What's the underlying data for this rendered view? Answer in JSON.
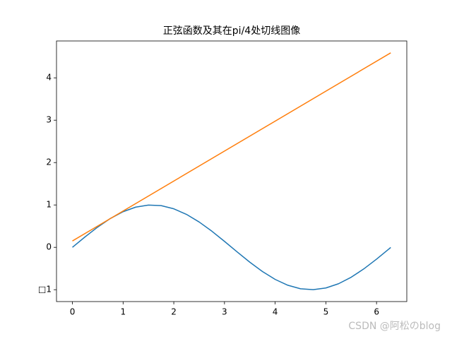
{
  "chart_data": {
    "type": "line",
    "title": "正弦函数及其在pi/4处切线图像",
    "series": [
      {
        "color": "#1f77b4",
        "x": [
          0,
          0.25,
          0.5,
          0.75,
          1,
          1.25,
          1.5,
          1.75,
          2,
          2.25,
          2.5,
          2.75,
          3,
          3.25,
          3.5,
          3.75,
          4,
          4.25,
          4.5,
          4.75,
          5,
          5.25,
          5.5,
          5.75,
          6,
          6.25,
          6.28
        ],
        "values": [
          0,
          0.247,
          0.479,
          0.682,
          0.841,
          0.949,
          0.997,
          0.984,
          0.909,
          0.778,
          0.598,
          0.382,
          0.141,
          -0.108,
          -0.351,
          -0.572,
          -0.757,
          -0.895,
          -0.978,
          -0.999,
          -0.959,
          -0.859,
          -0.706,
          -0.508,
          -0.279,
          -0.033,
          -0.003
        ]
      },
      {
        "color": "#ff7f0e",
        "x": [
          0,
          6.28
        ],
        "values": [
          0.15,
          4.59
        ]
      }
    ],
    "xlim": [
      -0.314,
      6.597
    ],
    "ylim": [
      -1.28,
      4.87
    ],
    "xticks": [
      0,
      1,
      2,
      3,
      4,
      5,
      6
    ],
    "yticks": [
      {
        "value": -1,
        "label": "□1"
      },
      0,
      1,
      2,
      3,
      4
    ],
    "watermark": "CSDN @阿松のblog"
  }
}
